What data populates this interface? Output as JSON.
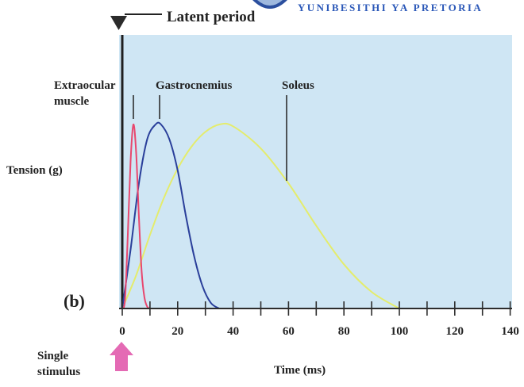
{
  "header": {
    "university_text": "YUNIBESITHI YA PRETORIA"
  },
  "chart_data": {
    "type": "line",
    "title": "",
    "panel_label": "(b)",
    "xlabel": "Time (ms)",
    "ylabel": "Tension (g)",
    "xlim": [
      0,
      140
    ],
    "x_ticks": [
      0,
      20,
      40,
      60,
      80,
      100,
      120,
      140
    ],
    "grid": false,
    "series": [
      {
        "name": "Extraocular muscle",
        "color": "#e8476e",
        "x": [
          0,
          1,
          2,
          3,
          4,
          5,
          6,
          7,
          8,
          9,
          10
        ],
        "y": [
          0,
          0.05,
          0.4,
          0.8,
          1.0,
          0.85,
          0.5,
          0.2,
          0.06,
          0.01,
          0
        ]
      },
      {
        "name": "Gastrocnemius",
        "color": "#2a3f9a",
        "x": [
          0,
          3,
          6,
          9,
          12,
          14,
          17,
          20,
          23,
          26,
          29,
          32,
          35
        ],
        "y": [
          0,
          0.32,
          0.68,
          0.92,
          1.0,
          1.0,
          0.92,
          0.75,
          0.5,
          0.28,
          0.12,
          0.03,
          0
        ]
      },
      {
        "name": "Soleus",
        "color": "#e4ec6c",
        "x": [
          0,
          5,
          10,
          15,
          20,
          25,
          30,
          35,
          40,
          50,
          60,
          70,
          80,
          90,
          100
        ],
        "y": [
          0,
          0.18,
          0.4,
          0.6,
          0.76,
          0.88,
          0.96,
          1.0,
          0.99,
          0.87,
          0.68,
          0.45,
          0.24,
          0.09,
          0
        ]
      }
    ],
    "series_labels": [
      "Extraocular muscle",
      "Gastrocnemius",
      "Soleus"
    ],
    "annotations": {
      "latent_period": "Latent period",
      "stimulus": "Single stimulus"
    },
    "colors": {
      "plot_background": "#cfe6f4",
      "stimulus_arrow": "#e46ab4"
    }
  }
}
